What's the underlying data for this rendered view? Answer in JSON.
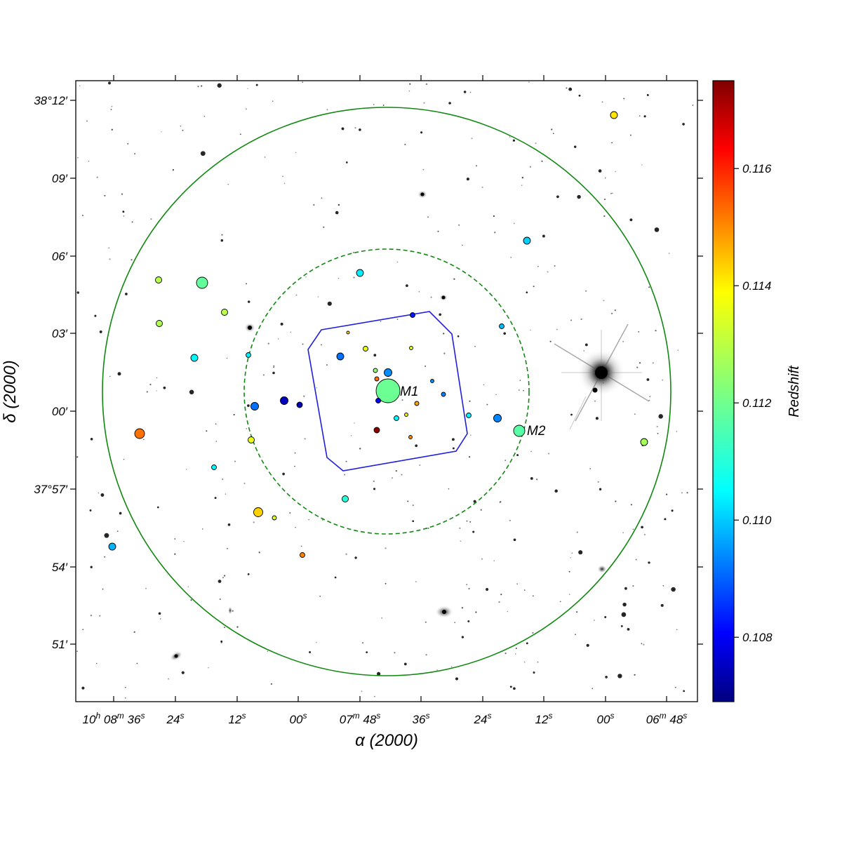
{
  "chart_data": {
    "type": "scatter",
    "xlabel": "α (2000)",
    "ylabel": "δ (2000)",
    "x_ticks": [
      {
        "h": "10",
        "m": "08",
        "s": "36"
      },
      {
        "s": "24"
      },
      {
        "s": "12"
      },
      {
        "s": "00"
      },
      {
        "m": "07",
        "s": "48"
      },
      {
        "s": "36"
      },
      {
        "s": "24"
      },
      {
        "s": "12"
      },
      {
        "s": "00"
      },
      {
        "m": "06",
        "s": "48"
      }
    ],
    "y_ticks": [
      "38°12′",
      "09′",
      "06′",
      "03′",
      "00′",
      "37°57′",
      "54′",
      "51′"
    ],
    "colorbar": {
      "label": "Redshift",
      "range": [
        0.1069,
        0.1175
      ],
      "ticks": [
        "0.108",
        "0.110",
        "0.112",
        "0.114",
        "0.116"
      ],
      "colormap": "jet"
    },
    "annotations": [
      "M1",
      "M2"
    ],
    "overlays": {
      "outer_circle": "solid green",
      "inner_circle": "dashed green",
      "footprint": "blue polygon",
      "circle_color": "#118811",
      "footprint_color": "#1f1fdd"
    },
    "galaxies": [
      {
        "x": 553,
        "y": 557,
        "z": 0.112,
        "r": 17,
        "label": "M1"
      },
      {
        "x": 740,
        "y": 614,
        "z": 0.1118,
        "r": 8,
        "label": "M2"
      },
      {
        "x": 875,
        "y": 164,
        "z": 0.1138,
        "r": 5
      },
      {
        "x": 751,
        "y": 343,
        "z": 0.1104,
        "r": 5
      },
      {
        "x": 513,
        "y": 389,
        "z": 0.1107,
        "r": 5
      },
      {
        "x": 288,
        "y": 403,
        "z": 0.1119,
        "r": 8
      },
      {
        "x": 226,
        "y": 399,
        "z": 0.1128,
        "r": 4.5
      },
      {
        "x": 320,
        "y": 445,
        "z": 0.1128,
        "r": 4.5
      },
      {
        "x": 227,
        "y": 461,
        "z": 0.1127,
        "r": 4.5
      },
      {
        "x": 277,
        "y": 510,
        "z": 0.1108,
        "r": 5
      },
      {
        "x": 354,
        "y": 506,
        "z": 0.1107,
        "r": 3.5
      },
      {
        "x": 588,
        "y": 449,
        "z": 0.1085,
        "r": 3.5
      },
      {
        "x": 715,
        "y": 465,
        "z": 0.1102,
        "r": 3.5
      },
      {
        "x": 485,
        "y": 508,
        "z": 0.1094,
        "r": 5
      },
      {
        "x": 521,
        "y": 497,
        "z": 0.1133,
        "r": 3.5
      },
      {
        "x": 586,
        "y": 496,
        "z": 0.1132,
        "r": 2.5
      },
      {
        "x": 496,
        "y": 474,
        "z": 0.114,
        "r": 2
      },
      {
        "x": 535,
        "y": 528,
        "z": 0.1124,
        "r": 3
      },
      {
        "x": 553,
        "y": 531,
        "z": 0.1097,
        "r": 5.5
      },
      {
        "x": 537,
        "y": 540,
        "z": 0.115,
        "r": 3
      },
      {
        "x": 616,
        "y": 543,
        "z": 0.1097,
        "r": 2.5
      },
      {
        "x": 632,
        "y": 562,
        "z": 0.1096,
        "r": 3
      },
      {
        "x": 539,
        "y": 571,
        "z": 0.1082,
        "r": 3.5
      },
      {
        "x": 594,
        "y": 575,
        "z": 0.1145,
        "r": 3
      },
      {
        "x": 405,
        "y": 571,
        "z": 0.1076,
        "r": 5.5
      },
      {
        "x": 427,
        "y": 577,
        "z": 0.1074,
        "r": 4
      },
      {
        "x": 363,
        "y": 579,
        "z": 0.1094,
        "r": 5.5
      },
      {
        "x": 579,
        "y": 591,
        "z": 0.1138,
        "r": 2.5
      },
      {
        "x": 565,
        "y": 596,
        "z": 0.1108,
        "r": 3.5
      },
      {
        "x": 668,
        "y": 592,
        "z": 0.1107,
        "r": 3.5
      },
      {
        "x": 709,
        "y": 596,
        "z": 0.1096,
        "r": 5.5
      },
      {
        "x": 537,
        "y": 613,
        "z": 0.1174,
        "r": 4
      },
      {
        "x": 585,
        "y": 623,
        "z": 0.1148,
        "r": 2.5
      },
      {
        "x": 199,
        "y": 618,
        "z": 0.115,
        "r": 7
      },
      {
        "x": 358,
        "y": 627,
        "z": 0.1133,
        "r": 4.5
      },
      {
        "x": 918,
        "y": 630,
        "z": 0.1126,
        "r": 5
      },
      {
        "x": 305,
        "y": 666,
        "z": 0.1108,
        "r": 3.5
      },
      {
        "x": 492,
        "y": 711,
        "z": 0.1113,
        "r": 4.5
      },
      {
        "x": 368,
        "y": 730,
        "z": 0.114,
        "r": 6.5
      },
      {
        "x": 391,
        "y": 738,
        "z": 0.1132,
        "r": 3
      },
      {
        "x": 160,
        "y": 779,
        "z": 0.1101,
        "r": 5
      },
      {
        "x": 431,
        "y": 791,
        "z": 0.1148,
        "r": 3.5
      }
    ]
  }
}
